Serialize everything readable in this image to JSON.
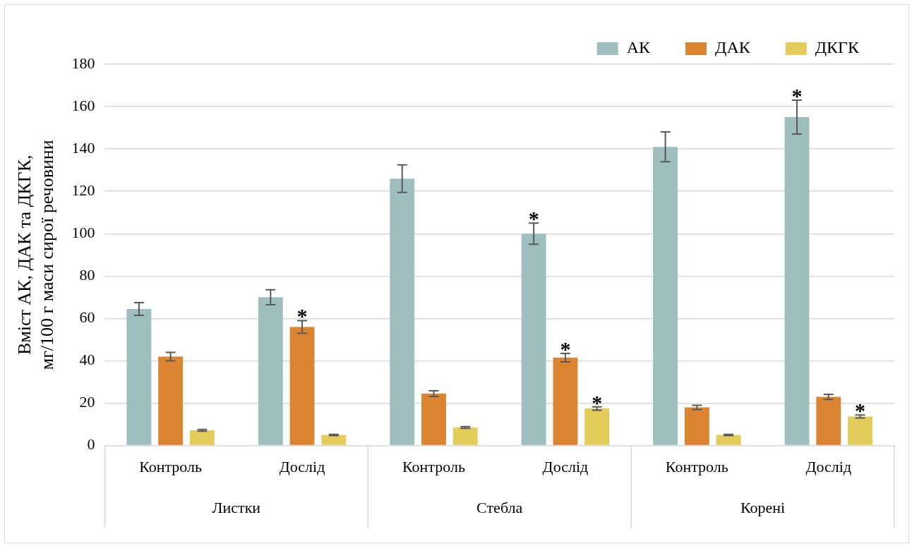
{
  "chart_data": {
    "type": "bar",
    "ylabel": "Вміст АК, ДАК та ДКГК,\nмг/100 г маси сирої речовини",
    "categories": [
      "Контроль",
      "Дослід",
      "Контроль",
      "Дослід",
      "Контроль",
      "Дослід"
    ],
    "series": [
      {
        "name": "АК",
        "color": "#9fbfbe",
        "values": [
          64.5,
          70,
          126,
          100,
          141,
          155
        ],
        "errors": [
          3,
          3.5,
          6.5,
          5,
          7,
          8
        ],
        "value_labels": [
          null,
          null,
          null,
          "*",
          null,
          "*"
        ]
      },
      {
        "name": "ДАК",
        "color": "#db8432",
        "values": [
          42,
          56,
          24.5,
          41.5,
          18,
          23
        ],
        "errors": [
          2,
          3,
          1.3,
          2,
          1,
          1.2
        ],
        "value_labels": [
          null,
          "*",
          null,
          "*",
          null,
          null
        ]
      },
      {
        "name": "ДКГК",
        "color": "#e3cc5a",
        "values": [
          7.2,
          5,
          8.5,
          17.5,
          5,
          13.7
        ],
        "errors": [
          0.4,
          0.3,
          0.4,
          0.8,
          0.3,
          0.7
        ],
        "value_labels": [
          null,
          null,
          null,
          "*",
          null,
          "*"
        ]
      }
    ],
    "ylim": [
      0,
      180
    ],
    "yticks": [
      0,
      20,
      40,
      60,
      80,
      100,
      120,
      140,
      160,
      180
    ],
    "grid": "y",
    "legend": "top right",
    "annotations": [
      "Листки",
      "Стебла",
      "Корені"
    ]
  }
}
